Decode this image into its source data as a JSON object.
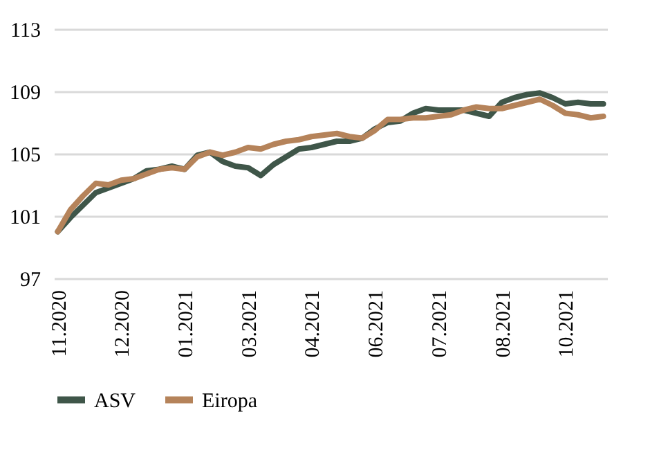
{
  "chart_data": {
    "type": "line",
    "categories": [
      "11.2020",
      null,
      null,
      null,
      null,
      "12.2020",
      null,
      null,
      null,
      null,
      "01.2021",
      null,
      null,
      null,
      null,
      "03.2021",
      null,
      null,
      null,
      null,
      "04.2021",
      null,
      null,
      null,
      null,
      "06.2021",
      null,
      null,
      null,
      null,
      "07.2021",
      null,
      null,
      null,
      null,
      "08.2021",
      null,
      null,
      null,
      null,
      "10.2021",
      null,
      null,
      null
    ],
    "series": [
      {
        "name": "ASV",
        "color": "#3f5649",
        "values": [
          100,
          100.9,
          101.7,
          102.5,
          102.8,
          103.1,
          103.4,
          103.9,
          104.0,
          104.2,
          104.0,
          104.9,
          105.1,
          104.5,
          104.2,
          104.1,
          103.6,
          104.3,
          104.8,
          105.3,
          105.4,
          105.6,
          105.8,
          105.8,
          106.0,
          106.6,
          107.0,
          107.1,
          107.6,
          107.9,
          107.8,
          107.8,
          107.8,
          107.6,
          107.4,
          108.3,
          108.6,
          108.8,
          108.9,
          108.6,
          108.2,
          108.3,
          108.2,
          108.2
        ]
      },
      {
        "name": "Eiropa",
        "color": "#b5835a",
        "values": [
          100,
          101.4,
          102.3,
          103.1,
          103.0,
          103.3,
          103.4,
          103.7,
          104.0,
          104.1,
          104.0,
          104.8,
          105.1,
          104.9,
          105.1,
          105.4,
          105.3,
          105.6,
          105.8,
          105.9,
          106.1,
          106.2,
          106.3,
          106.1,
          106.0,
          106.5,
          107.2,
          107.2,
          107.3,
          107.3,
          107.4,
          107.5,
          107.8,
          108.0,
          107.9,
          107.9,
          108.1,
          108.3,
          108.5,
          108.1,
          107.6,
          107.5,
          107.3,
          107.4
        ]
      }
    ],
    "ylim": [
      97,
      113
    ],
    "yticks": [
      97,
      101,
      105,
      109,
      113
    ],
    "grid": "y",
    "legend": "bottom",
    "line_style": "solid"
  }
}
